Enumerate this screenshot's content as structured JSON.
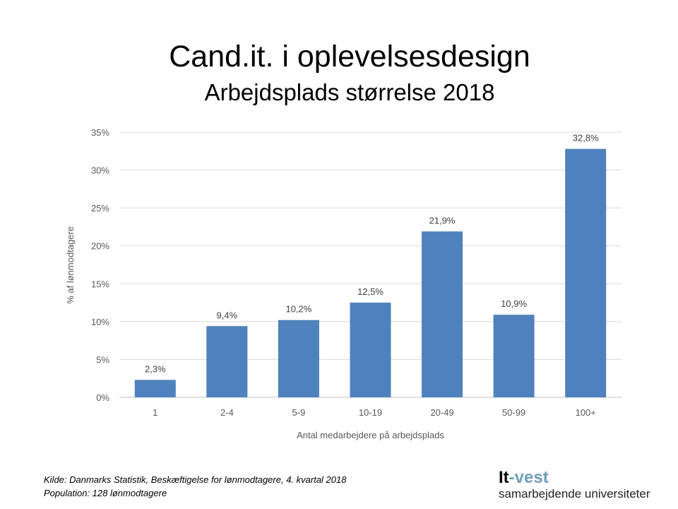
{
  "chart_data": {
    "type": "bar",
    "title": "Cand.it. i oplevelsesdesign",
    "subtitle": "Arbejdsplads størrelse 2018",
    "categories": [
      "1",
      "2-4",
      "5-9",
      "10-19",
      "20-49",
      "50-99",
      "100+"
    ],
    "values": [
      2.3,
      9.4,
      10.2,
      12.5,
      21.9,
      10.9,
      32.8
    ],
    "data_labels": [
      "2,3%",
      "9,4%",
      "10,2%",
      "12,5%",
      "21,9%",
      "10,9%",
      "32,8%"
    ],
    "xlabel": "Antal medarbejdere på arbejdsplads",
    "ylabel": "% af lønmodtagere",
    "ylim": [
      0,
      35
    ],
    "yticks": [
      0,
      5,
      10,
      15,
      20,
      25,
      30,
      35
    ],
    "ytick_labels": [
      "0%",
      "5%",
      "10%",
      "15%",
      "20%",
      "25%",
      "30%",
      "35%"
    ],
    "grid": true,
    "bar_color": "#4f81bd"
  },
  "footer": {
    "source": "Kilde: Danmarks Statistik, Beskæftigelse for lønmodtagere, 4. kvartal 2018",
    "population": "Population: 128 lønmodtagere"
  },
  "logo": {
    "part1": "It",
    "part2": "-vest",
    "tagline": "samarbejdende universiteter"
  }
}
